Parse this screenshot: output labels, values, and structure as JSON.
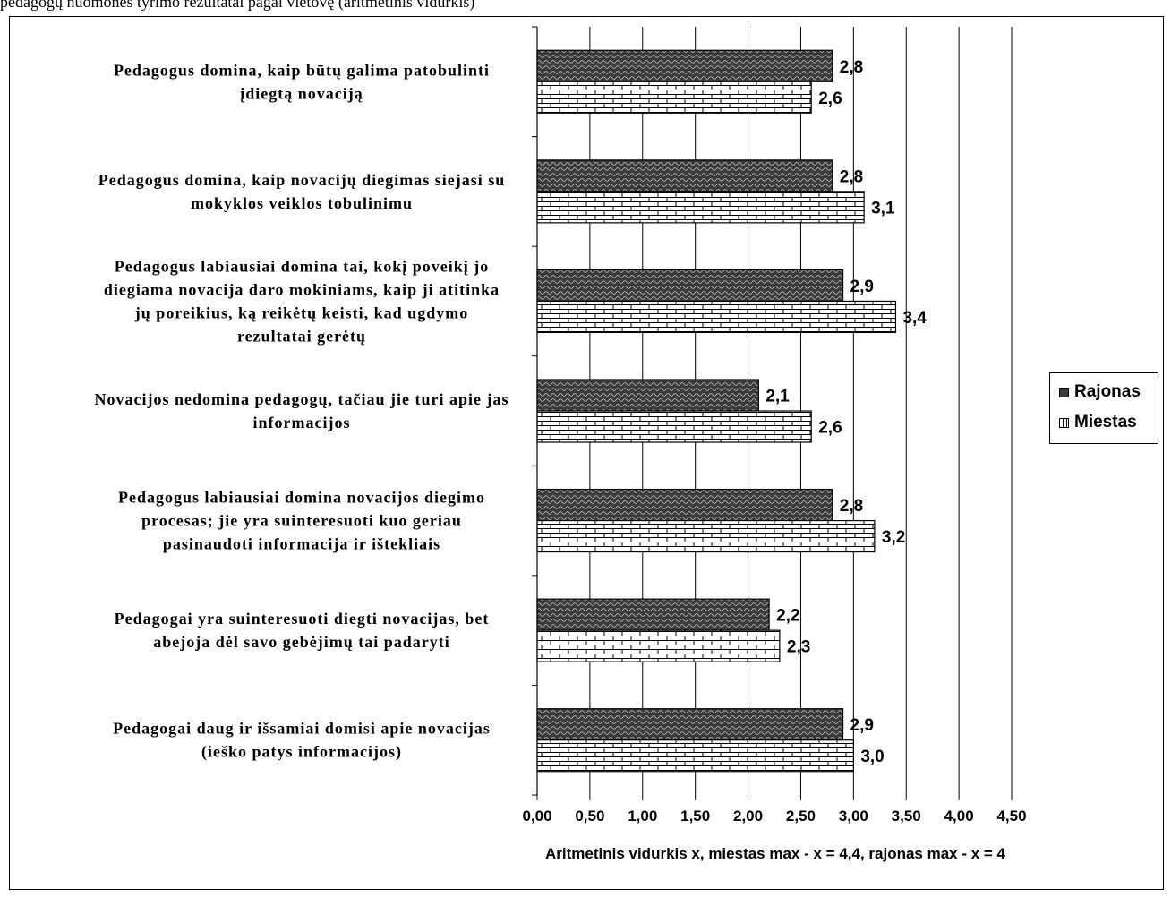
{
  "page": {
    "top_caption": "pedagogų nuomonės tyrimo rezultatai pagal vietovę (aritmetinis vidurkis)"
  },
  "colors": {
    "rajonas": "#3a3a3a",
    "miestas": "#ffffff",
    "grid": "#000000"
  },
  "chart_data": {
    "type": "bar",
    "orientation": "horizontal",
    "title": "",
    "xlabel": "Aritmetinis vidurkis x, miestas max - x = 4,4, rajonas max - x = 4",
    "ylabel": "",
    "xlim": [
      0,
      4.5
    ],
    "xticks": [
      "0,00",
      "0,50",
      "1,00",
      "1,50",
      "2,00",
      "2,50",
      "3,00",
      "3,50",
      "4,00",
      "4,50"
    ],
    "grid": true,
    "legend_position": "right",
    "categories": [
      [
        "Pedagogus domina, kaip būtų  galima patobulinti",
        "įdiegtą novaciją"
      ],
      [
        "Pedagogus domina, kaip novacijų diegimas siejasi su",
        "mokyklos veiklos tobulinimu"
      ],
      [
        "Pedagogus labiausiai domina tai, kokį poveikį jo",
        "diegiama novacija daro mokiniams, kaip ji atitinka",
        "jų poreikius, ką reikėtų keisti, kad ugdymo",
        "rezultatai gerėtų"
      ],
      [
        "Novacijos nedomina pedagogų, tačiau jie turi apie jas",
        "informacijos"
      ],
      [
        "Pedagogus labiausiai domina novacijos diegimo",
        "procesas; jie yra suinteresuoti kuo geriau",
        "pasinaudoti informacija ir ištekliais"
      ],
      [
        "Pedagogai yra suinteresuoti diegti novacijas, bet",
        "abejoja dėl savo gebėjimų tai padaryti"
      ],
      [
        "Pedagogai daug ir išsamiai domisi apie novacijas",
        "(ieško patys informacijos)"
      ]
    ],
    "series": [
      {
        "name": "Rajonas",
        "values": [
          2.8,
          2.8,
          2.9,
          2.1,
          2.8,
          2.2,
          2.9
        ],
        "labels": [
          "2,8",
          "2,8",
          "2,9",
          "2,1",
          "2,8",
          "2,2",
          "2,9"
        ]
      },
      {
        "name": "Miestas",
        "values": [
          2.6,
          3.1,
          3.4,
          2.6,
          3.2,
          2.3,
          3.0
        ],
        "labels": [
          "2,6",
          "3,1",
          "3,4",
          "2,6",
          "3,2",
          "2,3",
          "3,0"
        ]
      }
    ]
  }
}
